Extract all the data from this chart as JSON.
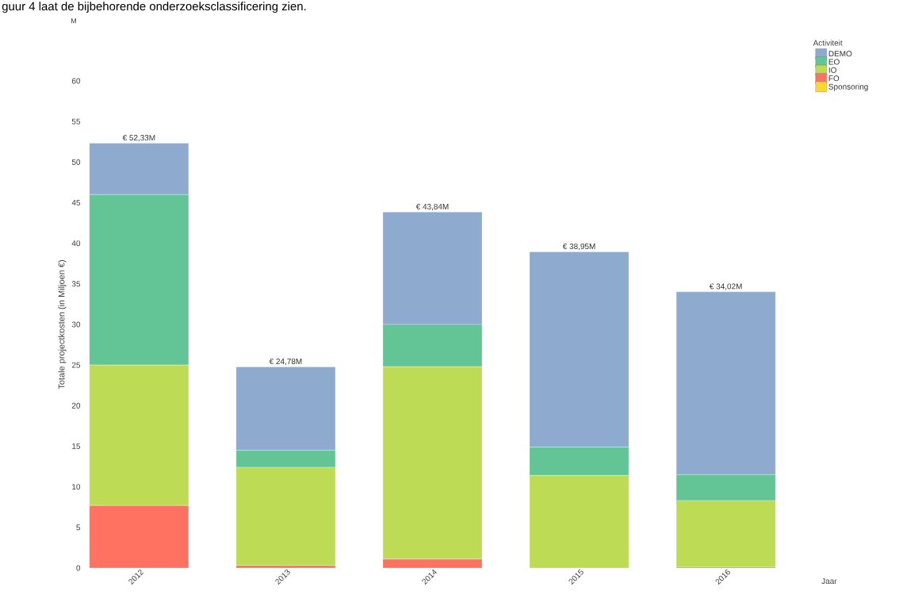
{
  "chart_data": {
    "type": "bar",
    "stacked": true,
    "annotations": [
      "guur 4 laat de bijbehorende onderzoeksclassificering zien.",
      "M"
    ],
    "ylabel": "Totale projectkosten (in Miljoen €)",
    "xlabel": "Jaar",
    "legend_title": "Activiteit",
    "categories": [
      "2012",
      "2013",
      "2014",
      "2015",
      "2016"
    ],
    "series": [
      {
        "name": "Sponsoring",
        "color": "#ffd82f",
        "values": [
          0,
          0,
          0,
          0,
          0
        ]
      },
      {
        "name": "FO",
        "color": "#ff7262",
        "values": [
          7.7,
          0.3,
          1.1,
          0,
          0.1
        ]
      },
      {
        "name": "IO",
        "color": "#bedb55",
        "values": [
          17.3,
          12.1,
          23.7,
          11.4,
          8.2
        ]
      },
      {
        "name": "EO",
        "color": "#63c495",
        "values": [
          21,
          2.1,
          5.2,
          3.5,
          3.2
        ]
      },
      {
        "name": "DEMO",
        "color": "#8eaacf",
        "values": [
          6.33,
          10.28,
          13.84,
          24.05,
          22.52
        ]
      }
    ],
    "totals": [
      "€ 52,33M",
      "€ 24,78M",
      "€ 43,84M",
      "€ 38,95M",
      "€ 34,02M"
    ],
    "ylim": [
      0,
      60
    ],
    "yticks": [
      0,
      5,
      10,
      15,
      20,
      25,
      30,
      35,
      40,
      45,
      50,
      55,
      60
    ],
    "grid": false,
    "legend": "top right"
  }
}
